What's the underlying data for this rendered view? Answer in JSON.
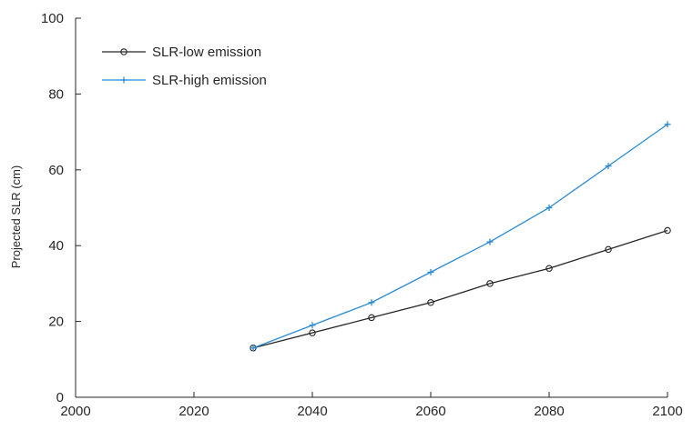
{
  "chart_data": {
    "type": "line",
    "title": "",
    "xlabel": "",
    "ylabel": "Projected SLR (cm)",
    "xlim": [
      2000,
      2100
    ],
    "ylim": [
      0,
      100
    ],
    "xticks": [
      2000,
      2020,
      2040,
      2060,
      2080,
      2100
    ],
    "yticks": [
      0,
      20,
      40,
      60,
      80,
      100
    ],
    "grid": false,
    "legend_position": "top-left",
    "series": [
      {
        "name": "SLR-low emission",
        "color": "#262626",
        "marker": "circle",
        "x": [
          2030,
          2040,
          2050,
          2060,
          2070,
          2080,
          2090,
          2100
        ],
        "y": [
          13,
          17,
          21,
          25,
          30,
          34,
          39,
          44
        ]
      },
      {
        "name": "SLR-high emission",
        "color": "#2a8bd4",
        "marker": "plus",
        "x": [
          2030,
          2040,
          2050,
          2060,
          2070,
          2080,
          2090,
          2100
        ],
        "y": [
          13,
          19,
          25,
          33,
          41,
          50,
          61,
          72
        ]
      }
    ]
  }
}
